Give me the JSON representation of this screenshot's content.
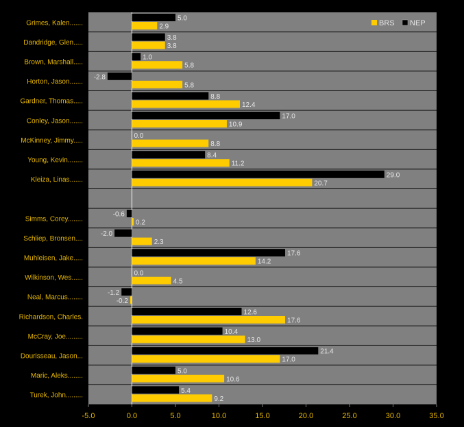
{
  "colors": {
    "background": "#000000",
    "plot": "#808080",
    "gridline": "#000000",
    "BRS": "#ffcc00",
    "NEP": "#000000",
    "label_text": "#e8b800",
    "value_text": "#e6e6e6"
  },
  "chart_data": {
    "type": "bar",
    "orientation": "horizontal",
    "xlim": [
      -5,
      35
    ],
    "xticks": [
      "-5.0",
      "0.0",
      "5.0",
      "10.0",
      "15.0",
      "20.0",
      "25.0",
      "30.0",
      "35.0"
    ],
    "xtick_values": [
      -5,
      0,
      5,
      10,
      15,
      20,
      25,
      30,
      35
    ],
    "grid": "horizontal row dividers",
    "legend_position": "top-right",
    "series": [
      {
        "name": "BRS",
        "color": "#ffcc00"
      },
      {
        "name": "NEP",
        "color": "#000000"
      }
    ],
    "rows": [
      {
        "name": "Grimes, Kalen.......",
        "NEP": 5.0,
        "BRS": 2.9,
        "NEP_label": "5.0",
        "BRS_label": "2.9"
      },
      {
        "name": "Dandridge, Glen.....",
        "NEP": 3.8,
        "BRS": 3.8,
        "NEP_label": "3.8",
        "BRS_label": "3.8"
      },
      {
        "name": "Brown, Marshall.....",
        "NEP": 1.0,
        "BRS": 5.8,
        "NEP_label": "1.0",
        "BRS_label": "5.8"
      },
      {
        "name": "Horton, Jason.......",
        "NEP": -2.8,
        "BRS": 5.8,
        "NEP_label": "-2.8",
        "BRS_label": "5.8"
      },
      {
        "name": "Gardner, Thomas.....",
        "NEP": 8.8,
        "BRS": 12.4,
        "NEP_label": "8.8",
        "BRS_label": "12.4"
      },
      {
        "name": "Conley, Jason.......",
        "NEP": 17.0,
        "BRS": 10.9,
        "NEP_label": "17.0",
        "BRS_label": "10.9"
      },
      {
        "name": "McKinney, Jimmy.....",
        "NEP": 0.0,
        "BRS": 8.8,
        "NEP_label": "0.0",
        "BRS_label": "8.8"
      },
      {
        "name": "Young, Kevin........",
        "NEP": 8.4,
        "BRS": 11.2,
        "NEP_label": "8.4",
        "BRS_label": "11.2"
      },
      {
        "name": "Kleiza, Linas.......",
        "NEP": 29.0,
        "BRS": 20.7,
        "NEP_label": "29.0",
        "BRS_label": "20.7"
      },
      {
        "name": "",
        "NEP": null,
        "BRS": null,
        "NEP_label": "",
        "BRS_label": ""
      },
      {
        "name": "Simms, Corey........",
        "NEP": -0.6,
        "BRS": 0.2,
        "NEP_label": "-0.6",
        "BRS_label": "0.2"
      },
      {
        "name": "Schliep, Bronsen....",
        "NEP": -2.0,
        "BRS": 2.3,
        "NEP_label": "-2.0",
        "BRS_label": "2.3"
      },
      {
        "name": "Muhleisen, Jake.....",
        "NEP": 17.6,
        "BRS": 14.2,
        "NEP_label": "17.6",
        "BRS_label": "14.2"
      },
      {
        "name": "Wilkinson, Wes......",
        "NEP": 0.0,
        "BRS": 4.5,
        "NEP_label": "0.0",
        "BRS_label": "4.5"
      },
      {
        "name": "Neal, Marcus........",
        "NEP": -1.2,
        "BRS": -0.2,
        "NEP_label": "-1.2",
        "BRS_label": "-0.2"
      },
      {
        "name": "Richardson, Charles.",
        "NEP": 12.6,
        "BRS": 17.6,
        "NEP_label": "12.6",
        "BRS_label": "17.6"
      },
      {
        "name": "McCray, Joe.........",
        "NEP": 10.4,
        "BRS": 13.0,
        "NEP_label": "10.4",
        "BRS_label": "13.0"
      },
      {
        "name": "Dourisseau, Jason...",
        "NEP": 21.4,
        "BRS": 17.0,
        "NEP_label": "21.4",
        "BRS_label": "17.0"
      },
      {
        "name": "Maric, Aleks........",
        "NEP": 5.0,
        "BRS": 10.6,
        "NEP_label": "5.0",
        "BRS_label": "10.6"
      },
      {
        "name": "Turek, John.........",
        "NEP": 5.4,
        "BRS": 9.2,
        "NEP_label": "5.4",
        "BRS_label": "9.2"
      }
    ]
  }
}
